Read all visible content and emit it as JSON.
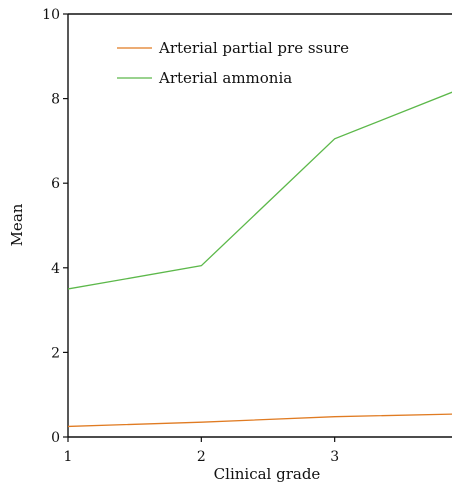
{
  "chart_data": {
    "type": "line",
    "title": "",
    "xlabel": "Clinical grade",
    "ylabel": "Mean",
    "x": [
      1,
      2,
      3,
      4
    ],
    "xlim": [
      1,
      3.88
    ],
    "ylim": [
      0,
      10
    ],
    "x_ticks": [
      "1",
      "2",
      "3"
    ],
    "y_ticks": [
      "0",
      "2",
      "4",
      "6",
      "8",
      "10"
    ],
    "grid": false,
    "legend_position": "top-left",
    "series": [
      {
        "name": "Arterial partial pre ssure",
        "color": "#e07b22",
        "values": [
          0.25,
          0.35,
          0.48,
          0.55
        ]
      },
      {
        "name": "Arterial ammonia",
        "color": "#5cb84a",
        "values": [
          3.5,
          4.05,
          7.05,
          8.3
        ]
      }
    ]
  }
}
